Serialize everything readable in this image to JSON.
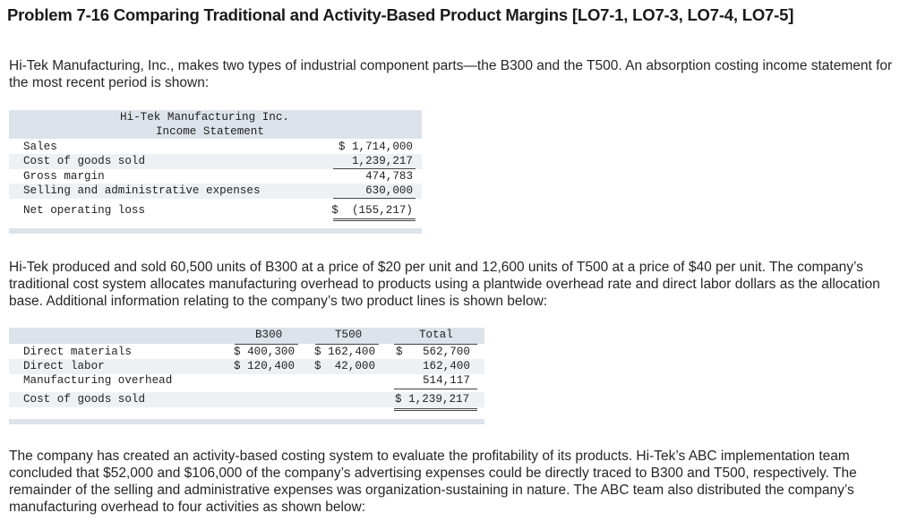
{
  "problem": {
    "title": "Problem 7-16 Comparing Traditional and Activity-Based Product Margins [LO7-1, LO7-3, LO7-4, LO7-5]",
    "intro": "Hi-Tek Manufacturing, Inc., makes two types of industrial component parts—the B300 and the T500. An absorption costing income statement for the most recent period is shown:",
    "production_text": "Hi-Tek produced and sold 60,500 units of B300 at a price of $20 per unit and 12,600 units of T500 at a price of $40 per unit. The company’s traditional cost system allocates manufacturing overhead to products using a plantwide overhead rate and direct labor dollars as the allocation base. Additional information relating to the company’s two product lines is shown below:",
    "abc_text": "The company has created an activity-based costing system to evaluate the profitability of its products. Hi-Tek’s ABC implementation team concluded that $52,000 and $106,000 of the company’s advertising expenses could be directly traced to B300 and T500, respectively. The remainder of the selling and administrative expenses was organization-sustaining in nature. The ABC team also distributed the company’s manufacturing overhead to four activities as shown below:"
  },
  "income_statement": {
    "company": "Hi-Tek Manufacturing Inc.",
    "subtitle": "Income Statement",
    "rows": [
      {
        "label": "Sales",
        "value": "$ 1,714,000"
      },
      {
        "label": "Cost of goods sold",
        "value": "1,239,217"
      },
      {
        "label": "Gross margin",
        "value": "474,783"
      },
      {
        "label": "Selling and administrative expenses",
        "value": "630,000"
      },
      {
        "label": "Net operating loss",
        "value": "$  (155,217)"
      }
    ]
  },
  "product_table": {
    "headers": [
      "B300",
      "T500",
      "Total"
    ],
    "rows": [
      {
        "label": "Direct materials",
        "b300": "$ 400,300",
        "t500": "$ 162,400",
        "total_prefix": "$",
        "total": "562,700"
      },
      {
        "label": "Direct labor",
        "b300": "$ 120,400",
        "t500": "$  42,000",
        "total_prefix": "",
        "total": "162,400"
      },
      {
        "label": "Manufacturing overhead",
        "b300": "",
        "t500": "",
        "total_prefix": "",
        "total": "514,117"
      },
      {
        "label": "Cost of goods sold",
        "b300": "",
        "t500": "",
        "total_prefix": "",
        "total": "$ 1,239,217"
      }
    ]
  }
}
